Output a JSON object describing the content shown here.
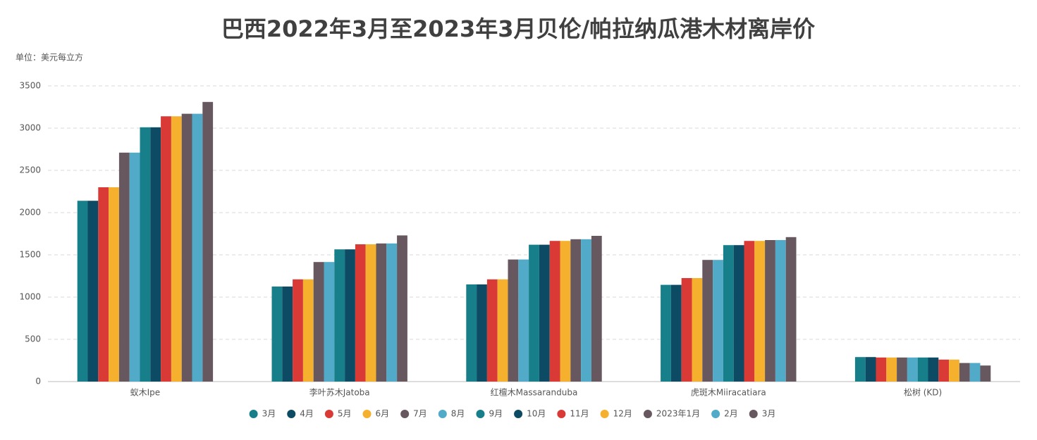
{
  "chart_data": {
    "type": "bar",
    "title": "巴西2022年3月至2023年3月贝伦/帕拉纳瓜港木材离岸价",
    "subtitle": "单位：美元每立方",
    "categories": [
      "蚁木Ipe",
      "李叶苏木Jatoba",
      "红檀木Massaranduba",
      "虎斑木Miiracatiara",
      "松树 (KD)"
    ],
    "series": [
      {
        "name": "3月",
        "color": "#167f89",
        "values": [
          2140,
          1125,
          1150,
          1145,
          290
        ]
      },
      {
        "name": "4月",
        "color": "#0c4b63",
        "values": [
          2140,
          1125,
          1150,
          1145,
          290
        ]
      },
      {
        "name": "5月",
        "color": "#d93a35",
        "values": [
          2300,
          1210,
          1210,
          1225,
          285
        ]
      },
      {
        "name": "6月",
        "color": "#f5b12e",
        "values": [
          2300,
          1210,
          1210,
          1225,
          285
        ]
      },
      {
        "name": "7月",
        "color": "#67585f",
        "values": [
          2710,
          1415,
          1445,
          1440,
          285
        ]
      },
      {
        "name": "8月",
        "color": "#50aac8",
        "values": [
          2710,
          1415,
          1445,
          1440,
          285
        ]
      },
      {
        "name": "9月",
        "color": "#167f89",
        "values": [
          3010,
          1565,
          1620,
          1615,
          285
        ]
      },
      {
        "name": "10月",
        "color": "#0c4b63",
        "values": [
          3010,
          1565,
          1620,
          1615,
          285
        ]
      },
      {
        "name": "11月",
        "color": "#d93a35",
        "values": [
          3140,
          1625,
          1665,
          1665,
          260
        ]
      },
      {
        "name": "12月",
        "color": "#f5b12e",
        "values": [
          3140,
          1625,
          1665,
          1665,
          260
        ]
      },
      {
        "name": "2023年1月",
        "color": "#67585f",
        "values": [
          3170,
          1635,
          1685,
          1675,
          220
        ]
      },
      {
        "name": "2月",
        "color": "#50aac8",
        "values": [
          3170,
          1635,
          1685,
          1675,
          220
        ]
      },
      {
        "name": "3月",
        "color": "#67585f",
        "values": [
          3310,
          1730,
          1725,
          1710,
          190
        ]
      }
    ],
    "ylim": [
      0,
      3500
    ],
    "yticks": [
      0,
      500,
      1000,
      1500,
      2000,
      2500,
      3000,
      3500
    ],
    "grid": true
  }
}
